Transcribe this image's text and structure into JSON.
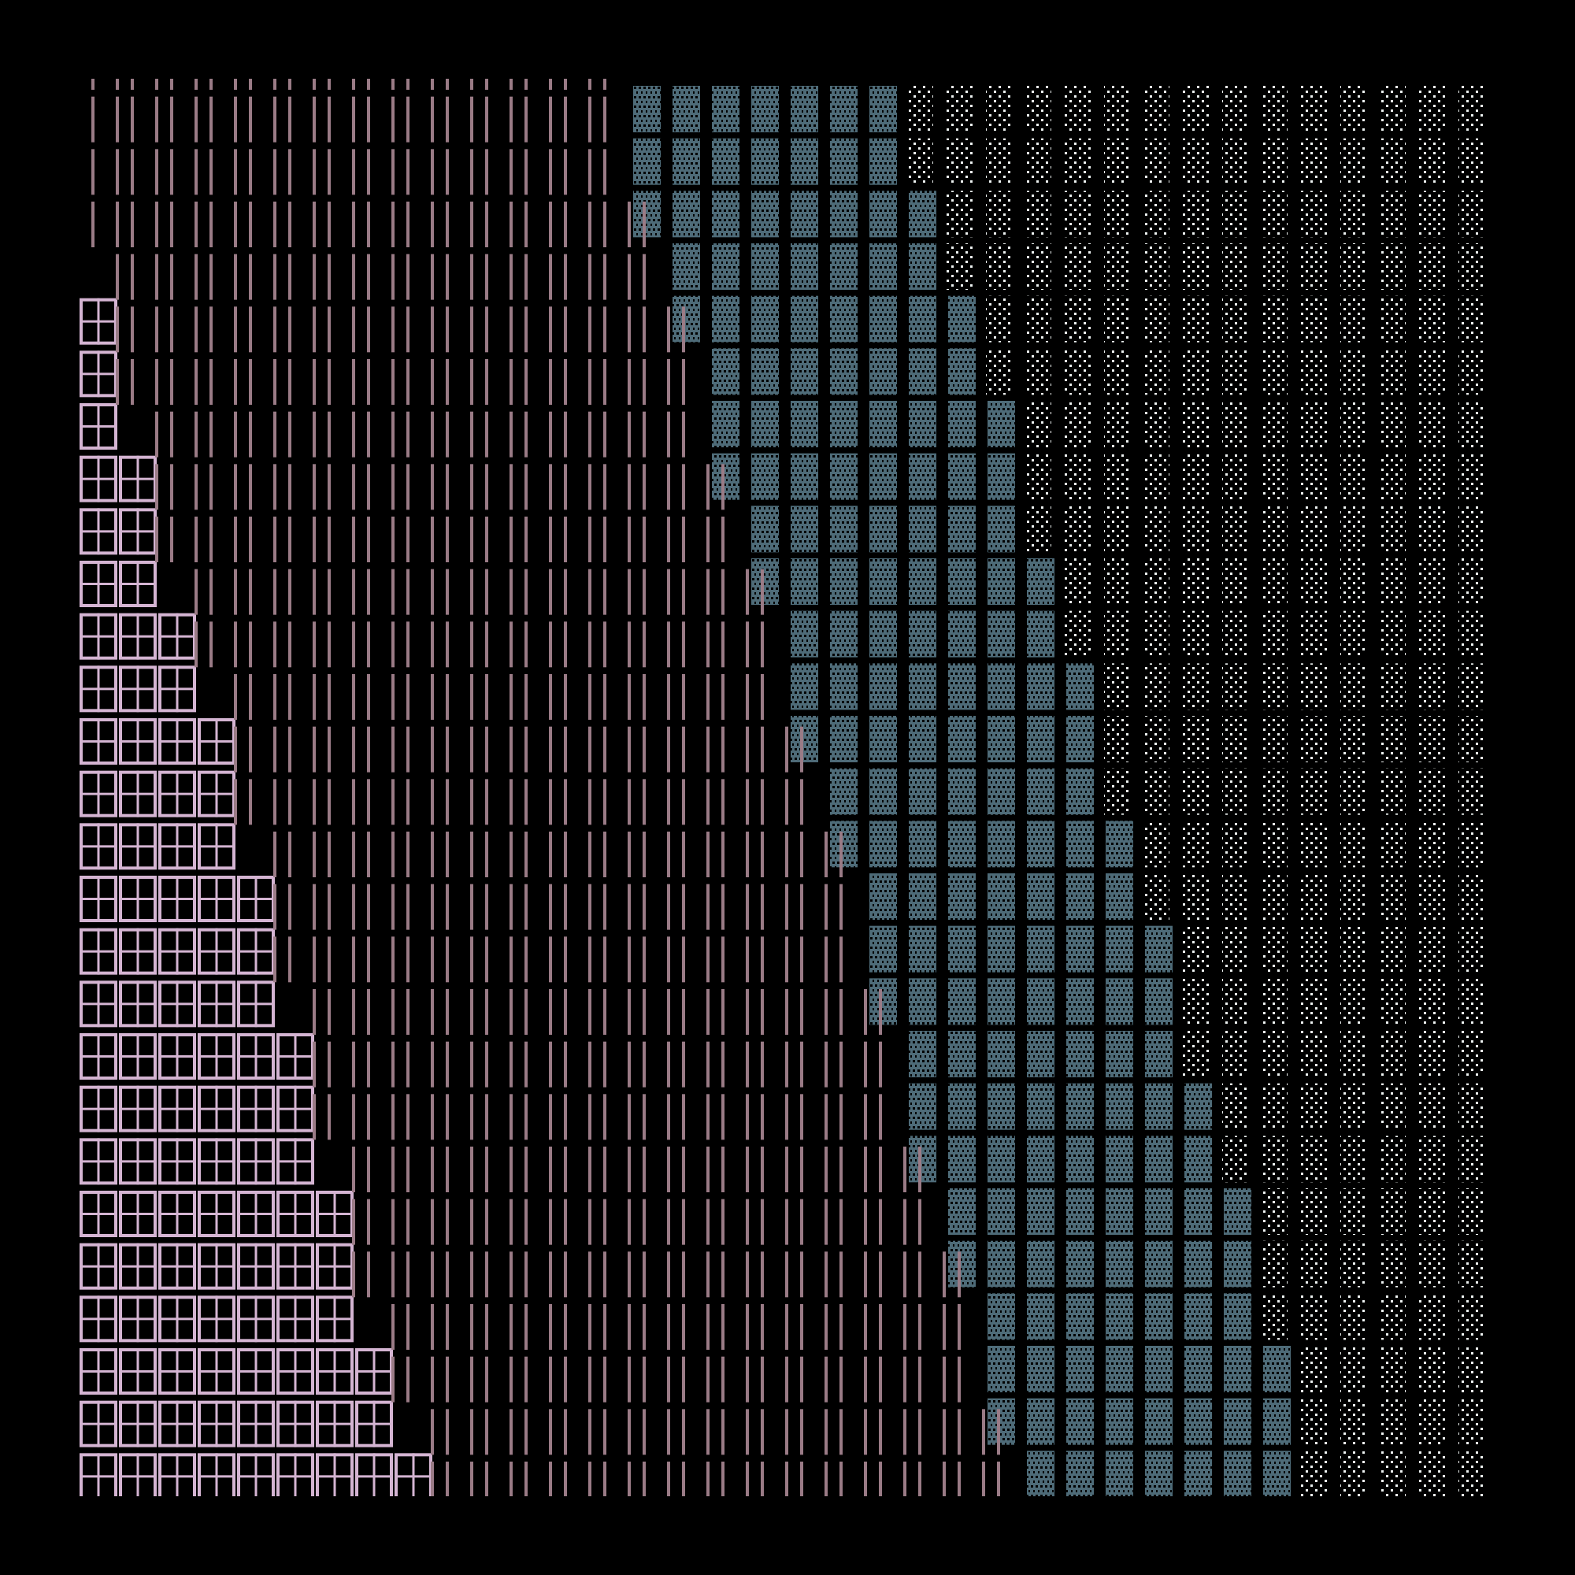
{
  "artwork": {
    "grid": {
      "columns": 36,
      "rows": 27
    },
    "colors": {
      "background": "#000000",
      "window_box": "#d4b4d2",
      "line": "#9a7b86",
      "teal_block": "#4e6b78",
      "white_dots": "#eef3f2"
    },
    "rows": {
      "window_box_counts": [
        0,
        0,
        0,
        0,
        1,
        1,
        1,
        2,
        2,
        2,
        3,
        3,
        4,
        4,
        4,
        5,
        5,
        5,
        6,
        6,
        6,
        7,
        7,
        7,
        8,
        8,
        9
      ],
      "teal_start_column": [
        14,
        14,
        14,
        15,
        15,
        16,
        16,
        16,
        17,
        17,
        18,
        18,
        18,
        19,
        19,
        20,
        20,
        20,
        21,
        21,
        21,
        22,
        22,
        23,
        23,
        23,
        24
      ],
      "teal_end_column": [
        20,
        20,
        21,
        21,
        22,
        22,
        23,
        23,
        23,
        24,
        24,
        25,
        25,
        25,
        26,
        26,
        27,
        27,
        27,
        28,
        28,
        29,
        29,
        29,
        30,
        30,
        30
      ]
    }
  }
}
